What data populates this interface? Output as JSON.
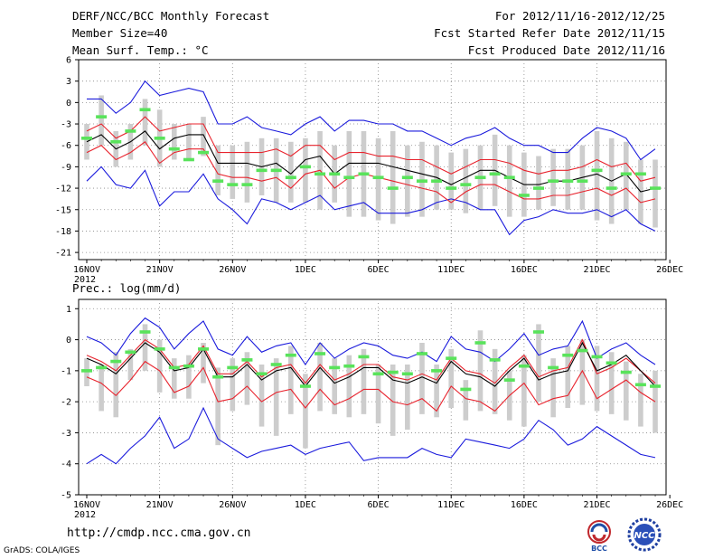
{
  "header": {
    "title": "DERF/NCC/BCC Monthly Forecast",
    "member_size": "Member Size=40",
    "variable": "Mean Surf. Temp.: °C",
    "forecast_range": "For 2012/11/16-2012/12/25",
    "start_date": "Fcst Started Refer Date 2012/11/15",
    "produced_date": "Fcst Produced Date 2012/11/16"
  },
  "colors": {
    "mean_line": "#000000",
    "spread_line": "#e8232d",
    "extreme_line": "#1a1adc",
    "member_box": "#cdcdcd",
    "obs_marker": "#59e35b",
    "grid": "#888888"
  },
  "chart_data": [
    {
      "type": "line",
      "title": "Mean Surf. Temp.: °C",
      "x_tick_labels": [
        "16NOV",
        "21NOV",
        "26NOV",
        "1DEC",
        "6DEC",
        "11DEC",
        "16DEC",
        "21DEC",
        "26DEC"
      ],
      "x_year_label": "2012",
      "y_ticks": [
        6,
        3,
        0,
        -3,
        -6,
        -9,
        -12,
        -15,
        -18,
        -21
      ],
      "ylim": [
        -22,
        6
      ],
      "days": 40,
      "series": [
        {
          "name": "max",
          "values": [
            0.5,
            0.5,
            -1.5,
            0,
            3,
            1,
            1.5,
            2,
            1.5,
            -3,
            -3,
            -2,
            -3.5,
            -4,
            -4.5,
            -3,
            -2,
            -4,
            -2.5,
            -2.5,
            -3,
            -3,
            -4,
            -4,
            -5,
            -6,
            -5,
            -4.5,
            -3.5,
            -5,
            -6,
            -6,
            -7,
            -7,
            -5,
            -3.5,
            -4,
            -5,
            -8,
            -6.5
          ]
        },
        {
          "name": "upper",
          "values": [
            -4,
            -3,
            -5,
            -4,
            -2,
            -4,
            -3.5,
            -3,
            -3,
            -7,
            -7,
            -7,
            -7,
            -6.5,
            -7.5,
            -6,
            -6,
            -8,
            -7,
            -7,
            -7.5,
            -7.5,
            -8,
            -8,
            -9,
            -10,
            -9,
            -8,
            -8,
            -8.5,
            -9.5,
            -10,
            -9.5,
            -9.5,
            -9,
            -8,
            -9,
            -8.5,
            -11,
            -10.5
          ]
        },
        {
          "name": "mean",
          "values": [
            -5.5,
            -4.5,
            -6.5,
            -5.5,
            -4,
            -6.5,
            -5,
            -4.5,
            -4.5,
            -8.5,
            -8.5,
            -8.5,
            -9,
            -8.5,
            -10,
            -8,
            -7.5,
            -10,
            -8.5,
            -8.5,
            -8.5,
            -9,
            -9.5,
            -10,
            -10.5,
            -11.5,
            -10.5,
            -9.5,
            -9.5,
            -10.5,
            -11.5,
            -11.5,
            -11,
            -11,
            -10.5,
            -10,
            -11,
            -10,
            -12.5,
            -12
          ]
        },
        {
          "name": "lower",
          "values": [
            -7,
            -6,
            -8,
            -7,
            -5.5,
            -8.5,
            -7,
            -6.5,
            -6.5,
            -10,
            -10.5,
            -10.5,
            -11,
            -10.5,
            -12,
            -10,
            -9.5,
            -12,
            -10.5,
            -10,
            -10.5,
            -11,
            -11.5,
            -12,
            -12.5,
            -14,
            -12.5,
            -11.5,
            -11.5,
            -12.5,
            -13.5,
            -13.5,
            -13,
            -13,
            -12.5,
            -12,
            -13,
            -12,
            -14,
            -13.5
          ]
        },
        {
          "name": "min",
          "values": [
            -11,
            -9,
            -11.5,
            -12,
            -9.5,
            -14.5,
            -12.5,
            -12.5,
            -10,
            -13.5,
            -15,
            -17,
            -13.5,
            -14,
            -15,
            -14,
            -13,
            -15,
            -14.5,
            -14,
            -15.5,
            -15.5,
            -15.5,
            -15,
            -14,
            -13.5,
            -14,
            -15,
            -15,
            -18.5,
            -16.5,
            -16,
            -15,
            -15.5,
            -15.5,
            -15,
            -16,
            -15,
            -17,
            -18
          ]
        },
        {
          "name": "observed",
          "values": [
            -5,
            -2,
            -5.5,
            -4,
            -1,
            -5,
            -6.5,
            -8,
            -7,
            -11,
            -11.5,
            -11.5,
            -9.5,
            -9.5,
            -10.5,
            -9,
            -10,
            -10,
            -10.5,
            -10,
            -10.5,
            -12,
            -10.5,
            -11,
            -11,
            -12,
            -11.5,
            -10.5,
            -10,
            -10.5,
            -13,
            -12,
            -11,
            -11,
            -11,
            -9.5,
            -12,
            -10,
            -10,
            -12
          ]
        },
        {
          "name": "box_top",
          "values": [
            -3,
            1,
            -4,
            -3,
            0.5,
            -1,
            -3,
            -3,
            -2,
            -6,
            -6,
            -5.5,
            -5,
            -5,
            -5.5,
            -5,
            -4,
            -6,
            -4,
            -4,
            -5,
            -4,
            -6,
            -5.5,
            -6,
            -7,
            -6.5,
            -6,
            -4.5,
            -6,
            -7,
            -7.5,
            -6.5,
            -6.5,
            -6,
            -4,
            -5,
            -5.5,
            -8,
            -8
          ]
        },
        {
          "name": "box_bottom",
          "values": [
            -8,
            -6,
            -9,
            -8,
            -6,
            -9,
            -8,
            -8,
            -7.5,
            -13,
            -13.5,
            -14,
            -13,
            -14,
            -14,
            -14,
            -15,
            -14,
            -16,
            -16,
            -16.5,
            -17,
            -16,
            -16,
            -15,
            -15,
            -15.5,
            -15,
            -14.5,
            -16,
            -16,
            -15,
            -14.5,
            -15,
            -15,
            -16.5,
            -17,
            -15,
            -17,
            -17.5
          ]
        }
      ]
    },
    {
      "type": "line",
      "title": "Prec.: log(mm/d)",
      "x_tick_labels": [
        "16NOV",
        "21NOV",
        "26NOV",
        "1DEC",
        "6DEC",
        "11DEC",
        "16DEC",
        "21DEC",
        "26DEC"
      ],
      "x_year_label": "2012",
      "y_ticks": [
        1,
        0,
        -1,
        -2,
        -3,
        -4,
        -5
      ],
      "ylim": [
        -5,
        1.3
      ],
      "days": 40,
      "series": [
        {
          "name": "max",
          "values": [
            0.1,
            -0.1,
            -0.5,
            0.2,
            0.7,
            0.4,
            -0.3,
            0.2,
            0.6,
            -0.3,
            -0.5,
            0.1,
            -0.4,
            -0.2,
            -0.1,
            -0.8,
            -0.1,
            -0.6,
            -0.3,
            -0.1,
            -0.2,
            -0.5,
            -0.6,
            -0.4,
            -0.7,
            0.1,
            -0.3,
            -0.4,
            -0.7,
            -0.3,
            0.2,
            -0.5,
            -0.3,
            -0.2,
            0.6,
            -0.6,
            -0.3,
            -0.1,
            -0.5,
            -0.8
          ]
        },
        {
          "name": "upper",
          "values": [
            -0.5,
            -0.7,
            -1.0,
            -0.5,
            0.0,
            -0.3,
            -0.9,
            -0.8,
            -0.2,
            -1.1,
            -1.1,
            -0.7,
            -1.2,
            -0.9,
            -0.8,
            -1.4,
            -0.8,
            -1.3,
            -1.1,
            -0.8,
            -0.8,
            -1.2,
            -1.3,
            -1.1,
            -1.3,
            -0.6,
            -1.0,
            -1.1,
            -1.4,
            -0.9,
            -0.5,
            -1.2,
            -1.0,
            -0.9,
            0.0,
            -1.1,
            -0.9,
            -0.6,
            -1.0,
            -1.4
          ]
        },
        {
          "name": "mean",
          "values": [
            -0.6,
            -0.8,
            -1.1,
            -0.6,
            -0.1,
            -0.4,
            -1.0,
            -0.9,
            -0.3,
            -1.2,
            -1.2,
            -0.8,
            -1.3,
            -1.0,
            -0.9,
            -1.5,
            -0.9,
            -1.4,
            -1.2,
            -0.9,
            -0.9,
            -1.3,
            -1.4,
            -1.2,
            -1.4,
            -0.7,
            -1.1,
            -1.2,
            -1.5,
            -1.0,
            -0.6,
            -1.3,
            -1.1,
            -1.0,
            -0.1,
            -1.0,
            -0.8,
            -0.5,
            -1.0,
            -1.5
          ]
        },
        {
          "name": "lower",
          "values": [
            -1.2,
            -1.4,
            -1.8,
            -1.3,
            -0.7,
            -1.0,
            -1.7,
            -1.5,
            -0.9,
            -2.0,
            -1.9,
            -1.5,
            -2.0,
            -1.7,
            -1.6,
            -2.2,
            -1.6,
            -2.1,
            -1.9,
            -1.6,
            -1.6,
            -2.0,
            -2.1,
            -1.9,
            -2.3,
            -1.5,
            -1.9,
            -2.0,
            -2.3,
            -1.8,
            -1.4,
            -2.1,
            -1.9,
            -1.8,
            -1.0,
            -1.9,
            -1.6,
            -1.3,
            -1.7,
            -2.0
          ]
        },
        {
          "name": "min",
          "values": [
            -4.0,
            -3.7,
            -4.0,
            -3.5,
            -3.1,
            -2.5,
            -3.5,
            -3.2,
            -2.2,
            -3.2,
            -3.5,
            -3.8,
            -3.6,
            -3.5,
            -3.4,
            -3.7,
            -3.5,
            -3.4,
            -3.3,
            -3.9,
            -3.8,
            -3.8,
            -3.8,
            -3.5,
            -3.7,
            -3.8,
            -3.2,
            -3.3,
            -3.4,
            -3.5,
            -3.2,
            -2.6,
            -2.9,
            -3.4,
            -3.2,
            -2.8,
            -3.1,
            -3.4,
            -3.7,
            -3.8
          ]
        },
        {
          "name": "observed",
          "values": [
            -1.0,
            -0.9,
            -0.7,
            -0.4,
            0.25,
            -0.3,
            -0.9,
            -0.85,
            -0.3,
            -1.2,
            -0.9,
            -0.65,
            -1.1,
            -0.8,
            -0.5,
            -1.5,
            -0.45,
            -0.9,
            -0.85,
            -0.55,
            -1.1,
            -1.05,
            -1.1,
            -0.45,
            -1.0,
            -0.6,
            -1.6,
            -0.1,
            -0.65,
            -1.3,
            -0.85,
            0.25,
            -0.9,
            -0.5,
            -0.35,
            -0.55,
            -0.75,
            -1.05,
            -1.45,
            -1.5
          ]
        },
        {
          "name": "box_top",
          "values": [
            -0.6,
            -0.8,
            -0.4,
            -0.3,
            0.5,
            0.0,
            -0.6,
            -0.5,
            -0.1,
            -0.9,
            -0.6,
            -0.4,
            -0.8,
            -0.6,
            -0.2,
            -1.1,
            -0.1,
            -0.6,
            -0.5,
            -0.3,
            -0.8,
            -0.8,
            -0.8,
            -0.1,
            -0.8,
            -0.3,
            -1.3,
            0.3,
            -0.3,
            -1.0,
            -0.5,
            0.5,
            -0.6,
            -0.2,
            0.0,
            -0.2,
            -0.4,
            -0.7,
            -1.1,
            -1.0
          ]
        },
        {
          "name": "box_bottom",
          "values": [
            -1.5,
            -2.3,
            -2.5,
            -1.3,
            -1.0,
            -1.7,
            -1.9,
            -1.9,
            -1.4,
            -3.4,
            -2.3,
            -2.1,
            -2.8,
            -3.1,
            -2.4,
            -3.5,
            -2.3,
            -2.4,
            -2.5,
            -2.4,
            -2.7,
            -3.1,
            -2.9,
            -2.4,
            -2.5,
            -2.2,
            -2.6,
            -2.3,
            -2.4,
            -2.6,
            -2.8,
            -2.0,
            -2.5,
            -2.2,
            -2.1,
            -2.3,
            -2.4,
            -2.6,
            -2.8,
            -3.0
          ]
        }
      ]
    }
  ],
  "footer": {
    "url": "http://cmdp.ncc.cma.gov.cn",
    "credit": "GrADS: COLA/IGES",
    "logo_left": "BCC",
    "logo_right": "NCC"
  }
}
